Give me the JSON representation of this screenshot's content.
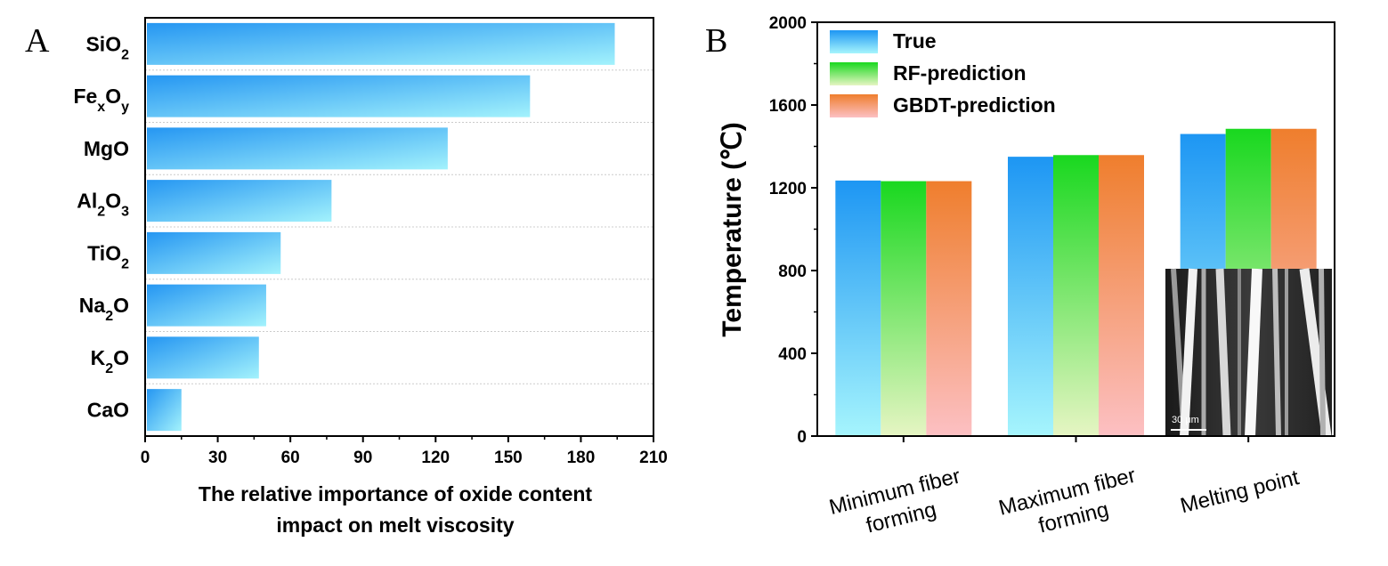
{
  "panels": {
    "a": "A",
    "b": "B"
  },
  "chart_data": [
    {
      "type": "bar",
      "orientation": "horizontal",
      "categories": [
        {
          "base": "SiO",
          "subs": [
            [
              "2",
              "after"
            ]
          ]
        },
        {
          "base": "Fe",
          "subs": [
            [
              "x",
              "after"
            ],
            [
              "O",
              "plain"
            ],
            [
              "y",
              "after"
            ]
          ]
        },
        {
          "base": "MgO",
          "subs": []
        },
        {
          "base": "Al",
          "subs": [
            [
              "2",
              "after"
            ],
            [
              "O",
              "plain"
            ],
            [
              "3",
              "after"
            ]
          ]
        },
        {
          "base": "TiO",
          "subs": [
            [
              "2",
              "after"
            ]
          ]
        },
        {
          "base": "Na",
          "subs": [
            [
              "2",
              "after"
            ],
            [
              "O",
              "plain"
            ]
          ]
        },
        {
          "base": "K",
          "subs": [
            [
              "2",
              "after"
            ],
            [
              "O",
              "plain"
            ]
          ]
        },
        {
          "base": "CaO",
          "subs": []
        }
      ],
      "values": [
        194,
        159,
        125,
        77,
        56,
        50,
        47,
        15
      ],
      "xlim": [
        0,
        210
      ],
      "xticks": [
        "0",
        "30",
        "60",
        "90",
        "120",
        "150",
        "180",
        "210"
      ],
      "xlabel": [
        "The relative importance of oxide content",
        "impact on melt viscosity"
      ],
      "grid": "horizontal dashed",
      "colors": {
        "bar_dark": "#2596f2",
        "bar_light": "#a3f2fc"
      }
    },
    {
      "type": "bar",
      "categories": [
        [
          "Minimum fiber",
          "forming"
        ],
        [
          "Maximum fiber",
          "forming"
        ],
        [
          "Melting point"
        ]
      ],
      "series": [
        {
          "name": "True",
          "values": [
            1235,
            1350,
            1460
          ],
          "color_top": "#1d96f3",
          "color_bottom": "#a6f5fd"
        },
        {
          "name": "RF-prediction",
          "values": [
            1232,
            1358,
            1485
          ],
          "color_top": "#19d81f",
          "color_bottom": "#e6f5c3"
        },
        {
          "name": "GBDT-prediction",
          "values": [
            1232,
            1358,
            1485
          ],
          "color_top": "#ef7e2d",
          "color_bottom": "#fcc0c3"
        }
      ],
      "ylim": [
        0,
        2000
      ],
      "yticks": [
        "0",
        "400",
        "800",
        "1200",
        "1600",
        "2000"
      ],
      "ylabel": "Temperature (℃)",
      "legend_position": "top-left",
      "inset": {
        "scale_label": "30 μm"
      }
    }
  ]
}
